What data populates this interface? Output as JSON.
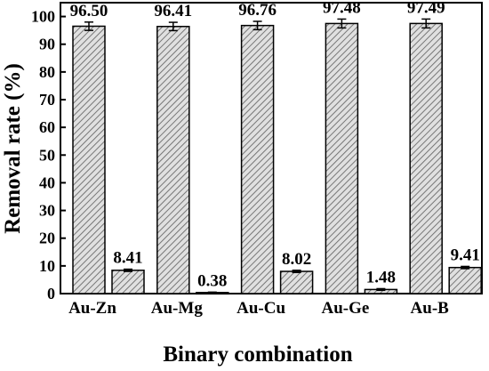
{
  "chart_data": {
    "type": "bar",
    "categories": [
      "Au-Zn",
      "Au-Mg",
      "Au-Cu",
      "Au-Ge",
      "Au-B"
    ],
    "series": [
      {
        "values": [
          96.5,
          96.41,
          96.76,
          97.48,
          97.49
        ],
        "errors": [
          1.5,
          1.5,
          1.5,
          1.6,
          1.6
        ]
      },
      {
        "values": [
          8.41,
          0.38,
          8.02,
          1.48,
          9.41
        ],
        "errors": [
          0.4,
          0.15,
          0.4,
          0.3,
          0.4
        ]
      }
    ],
    "data_labels": [
      [
        "96.50",
        "96.41",
        "96.76",
        "97.48",
        "97.49"
      ],
      [
        "8.41",
        "0.38",
        "8.02",
        "1.48",
        "9.41"
      ]
    ],
    "xlabel": "Binary combination",
    "ylabel": "Removal rate (%)",
    "ylim": [
      0,
      105
    ],
    "yticks": [
      0,
      10,
      20,
      30,
      40,
      50,
      60,
      70,
      80,
      90,
      100
    ],
    "grid": false,
    "bar_fill": "diagonal-hatch",
    "colors": {
      "hatch": "#6b6b6b",
      "bar_background": "#e0e0e0",
      "axis": "#000000"
    }
  }
}
